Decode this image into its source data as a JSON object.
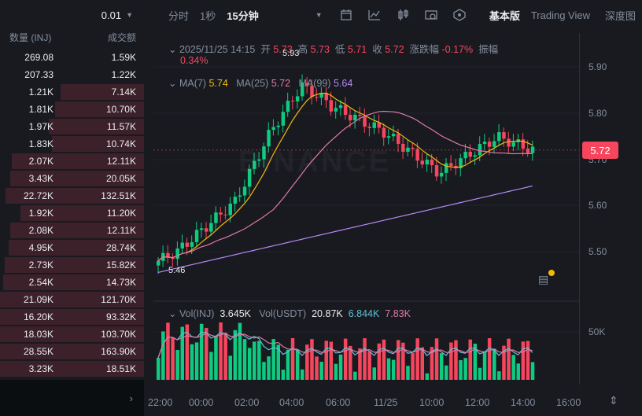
{
  "orderbook": {
    "precision": "0.01",
    "header_qty": "数量 (INJ)",
    "header_amount": "成交额",
    "rows": [
      {
        "qty": "269.08",
        "amount": "1.59K",
        "depth": 0.0
      },
      {
        "qty": "207.33",
        "amount": "1.22K",
        "depth": 0.0
      },
      {
        "qty": "1.21K",
        "amount": "7.14K",
        "depth": 0.58
      },
      {
        "qty": "1.81K",
        "amount": "10.70K",
        "depth": 0.62
      },
      {
        "qty": "1.97K",
        "amount": "11.57K",
        "depth": 0.66
      },
      {
        "qty": "1.83K",
        "amount": "10.74K",
        "depth": 0.64
      },
      {
        "qty": "2.07K",
        "amount": "12.11K",
        "depth": 0.92
      },
      {
        "qty": "3.43K",
        "amount": "20.05K",
        "depth": 0.93
      },
      {
        "qty": "22.72K",
        "amount": "132.51K",
        "depth": 0.96
      },
      {
        "qty": "1.92K",
        "amount": "11.20K",
        "depth": 0.86
      },
      {
        "qty": "2.08K",
        "amount": "12.11K",
        "depth": 0.93
      },
      {
        "qty": "4.95K",
        "amount": "28.74K",
        "depth": 0.94
      },
      {
        "qty": "2.73K",
        "amount": "15.82K",
        "depth": 0.97
      },
      {
        "qty": "2.54K",
        "amount": "14.73K",
        "depth": 0.98
      },
      {
        "qty": "21.09K",
        "amount": "121.70K",
        "depth": 1.0
      },
      {
        "qty": "16.20K",
        "amount": "93.32K",
        "depth": 1.0
      },
      {
        "qty": "18.03K",
        "amount": "103.70K",
        "depth": 1.0
      },
      {
        "qty": "28.55K",
        "amount": "163.90K",
        "depth": 1.0
      },
      {
        "qty": "3.23K",
        "amount": "18.51K",
        "depth": 1.0
      }
    ]
  },
  "toolbar": {
    "intervals": [
      "分时",
      "1秒",
      "15分钟"
    ],
    "active_interval": "15分钟",
    "views": [
      "基本版",
      "Trading View",
      "深度图"
    ],
    "active_view": "基本版",
    "icons": [
      "indicator-icon",
      "line-chart-icon",
      "candle-type-icon",
      "settings-icon",
      "layers-icon"
    ]
  },
  "ohlc": {
    "datetime": "2025/11/25 14:15",
    "open_label": "开",
    "open": "5.73",
    "high_label": "高",
    "high": "5.73",
    "low_label": "低",
    "low": "5.71",
    "close_label": "收",
    "close": "5.72",
    "change_label": "涨跌幅",
    "change": "-0.17%",
    "amplitude_label": "振幅",
    "amplitude": "0.34%"
  },
  "ma": {
    "ma7_label": "MA(7)",
    "ma7": "5.74",
    "ma25_label": "MA(25)",
    "ma25": "5.72",
    "ma99_label": "MA(99)",
    "ma99": "5.64"
  },
  "volume": {
    "inj_label": "Vol(INJ)",
    "inj": "3.645K",
    "usdt_label": "Vol(USDT)",
    "usdt": "20.87K",
    "ma1": "6.844K",
    "ma2": "7.83K"
  },
  "price_axis": {
    "labels": [
      "5.90",
      "5.80",
      "5.70",
      "5.60",
      "5.50"
    ],
    "values": [
      5.9,
      5.8,
      5.7,
      5.6,
      5.5
    ],
    "current": "5.72",
    "vol_label": "50K"
  },
  "time_axis": [
    "22:00",
    "00:00",
    "02:00",
    "04:00",
    "06:00",
    "11/25",
    "10:00",
    "12:00",
    "14:00",
    "16:00"
  ],
  "markers": {
    "high": "5.93",
    "low": "5.46"
  },
  "watermark": "BINANCE",
  "colors": {
    "up": "#0ecb81",
    "down": "#f6465d",
    "ma7": "#f0b90b",
    "ma25": "#e07aa4",
    "ma99": "#b788f5",
    "vol_ma1": "#5ec1d8",
    "vol_ma2": "#e07aa4"
  }
}
